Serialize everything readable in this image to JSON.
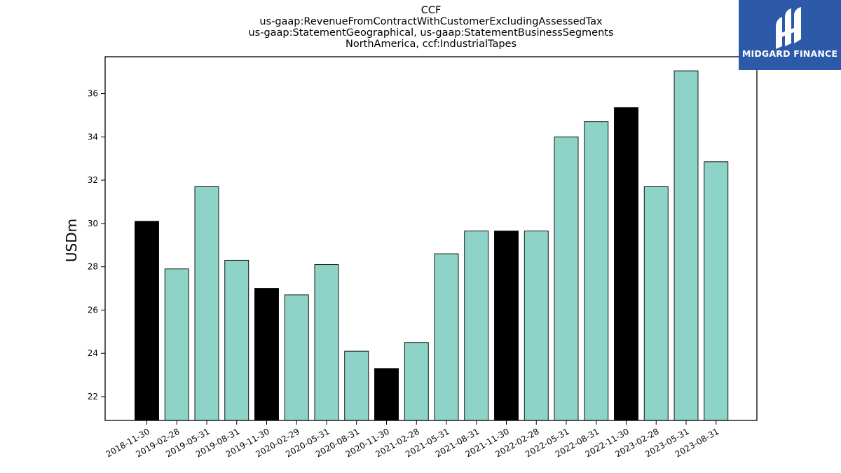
{
  "logo": {
    "text": "MIDGARD FINANCE",
    "background": "#2d5aa8",
    "icon": "mf-monogram-icon"
  },
  "chart_data": {
    "type": "bar",
    "title_lines": [
      "CCF",
      "us-gaap:RevenueFromContractWithCustomerExcludingAssessedTax",
      "us-gaap:StatementGeographical, us-gaap:StatementBusinessSegments",
      "NorthAmerica, ccf:IndustrialTapes"
    ],
    "xlabel": "",
    "ylabel": "USDm",
    "ylim": [
      20.9,
      37.7
    ],
    "yticks": [
      22,
      24,
      26,
      28,
      30,
      32,
      34,
      36
    ],
    "grid": false,
    "colors": {
      "quarter": "#8dd3c7",
      "fiscal_year_end": "#000000",
      "edge": "#000000"
    },
    "categories": [
      "2018-11-30",
      "2019-02-28",
      "2019-05-31",
      "2019-08-31",
      "2019-11-30",
      "2020-02-29",
      "2020-05-31",
      "2020-08-31",
      "2020-11-30",
      "2021-02-28",
      "2021-05-31",
      "2021-08-31",
      "2021-11-30",
      "2022-02-28",
      "2022-05-31",
      "2022-08-31",
      "2022-11-30",
      "2023-02-28",
      "2023-05-31",
      "2023-08-31"
    ],
    "values": [
      30.1,
      27.9,
      31.7,
      28.3,
      27.0,
      26.7,
      28.1,
      24.1,
      23.3,
      24.5,
      28.6,
      29.65,
      29.65,
      29.65,
      34.0,
      34.7,
      35.35,
      31.7,
      37.05,
      32.85
    ],
    "highlight": [
      true,
      false,
      false,
      false,
      true,
      false,
      false,
      false,
      true,
      false,
      false,
      false,
      true,
      false,
      false,
      false,
      true,
      false,
      false,
      false
    ]
  }
}
